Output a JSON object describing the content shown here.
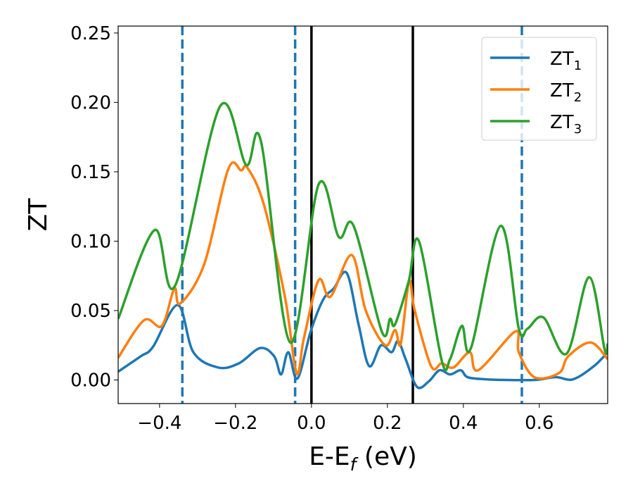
{
  "chart_data": {
    "type": "line",
    "title": "",
    "xlabel": "E-E",
    "xlabel_sub": "f",
    "xlabel_unit": " (eV)",
    "ylabel": "ZT",
    "xlim": [
      -0.509,
      0.78
    ],
    "ylim": [
      -0.017,
      0.255
    ],
    "xticks": [
      -0.4,
      -0.2,
      0.0,
      0.2,
      0.4,
      0.6
    ],
    "xtick_labels": [
      "−0.4",
      "−0.2",
      "0.0",
      "0.2",
      "0.4",
      "0.6"
    ],
    "yticks": [
      0.0,
      0.05,
      0.1,
      0.15,
      0.2,
      0.25
    ],
    "ytick_labels": [
      "0.00",
      "0.05",
      "0.10",
      "0.15",
      "0.20",
      "0.25"
    ],
    "grid": false,
    "legend_position": "top-right",
    "vlines_dashed": {
      "color": "#1f77b4",
      "x": [
        -0.34,
        -0.043,
        0.554
      ]
    },
    "vlines_solid": {
      "color": "#000000",
      "x": [
        0.0,
        0.267
      ]
    },
    "series": [
      {
        "name": "ZT",
        "sub": "1",
        "color": "#1f77b4",
        "x": [
          -0.509,
          -0.45,
          -0.417,
          -0.352,
          -0.311,
          -0.246,
          -0.191,
          -0.135,
          -0.098,
          -0.08,
          -0.061,
          -0.037,
          -0.002,
          0.031,
          0.059,
          0.093,
          0.124,
          0.152,
          0.183,
          0.211,
          0.228,
          0.248,
          0.278,
          0.309,
          0.337,
          0.365,
          0.393,
          0.411,
          0.457,
          0.513,
          0.587,
          0.643,
          0.689,
          0.744,
          0.78
        ],
        "y": [
          0.006,
          0.017,
          0.024,
          0.054,
          0.02,
          0.009,
          0.012,
          0.023,
          0.017,
          0.004,
          0.02,
          0.001,
          0.035,
          0.058,
          0.066,
          0.077,
          0.04,
          0.01,
          0.025,
          0.02,
          0.028,
          0.015,
          -0.005,
          -0.001,
          0.007,
          0.004,
          0.007,
          0.002,
          0.0005,
          0.0,
          0.0,
          0.002,
          0.0005,
          0.01,
          0.02
        ]
      },
      {
        "name": "ZT",
        "sub": "2",
        "color": "#ff7f0e",
        "x": [
          -0.509,
          -0.441,
          -0.394,
          -0.361,
          -0.346,
          -0.283,
          -0.219,
          -0.185,
          -0.169,
          -0.126,
          -0.07,
          -0.039,
          -0.02,
          0.019,
          0.05,
          0.106,
          0.143,
          0.194,
          0.22,
          0.235,
          0.257,
          0.272,
          0.315,
          0.343,
          0.374,
          0.417,
          0.439,
          0.537,
          0.546,
          0.587,
          0.652,
          0.676,
          0.735,
          0.78
        ],
        "y": [
          0.016,
          0.043,
          0.039,
          0.066,
          0.055,
          0.083,
          0.152,
          0.151,
          0.153,
          0.127,
          0.06,
          0.005,
          0.03,
          0.072,
          0.06,
          0.09,
          0.05,
          0.025,
          0.036,
          0.026,
          0.071,
          0.05,
          0.01,
          0.012,
          0.009,
          0.02,
          0.007,
          0.035,
          0.02,
          0.002,
          0.005,
          0.017,
          0.027,
          0.015
        ]
      },
      {
        "name": "ZT",
        "sub": "3",
        "color": "#2ca02c",
        "x": [
          -0.509,
          -0.413,
          -0.359,
          -0.241,
          -0.172,
          -0.133,
          -0.056,
          0.019,
          0.072,
          0.111,
          0.185,
          0.207,
          0.22,
          0.256,
          0.283,
          0.343,
          0.365,
          0.396,
          0.42,
          0.498,
          0.546,
          0.569,
          0.611,
          0.672,
          0.731,
          0.772,
          0.78
        ],
        "y": [
          0.044,
          0.108,
          0.068,
          0.197,
          0.155,
          0.172,
          0.027,
          0.141,
          0.103,
          0.111,
          0.035,
          0.044,
          0.04,
          0.071,
          0.1,
          0.014,
          0.015,
          0.039,
          0.023,
          0.111,
          0.037,
          0.037,
          0.045,
          0.019,
          0.074,
          0.022,
          0.026
        ]
      }
    ]
  }
}
